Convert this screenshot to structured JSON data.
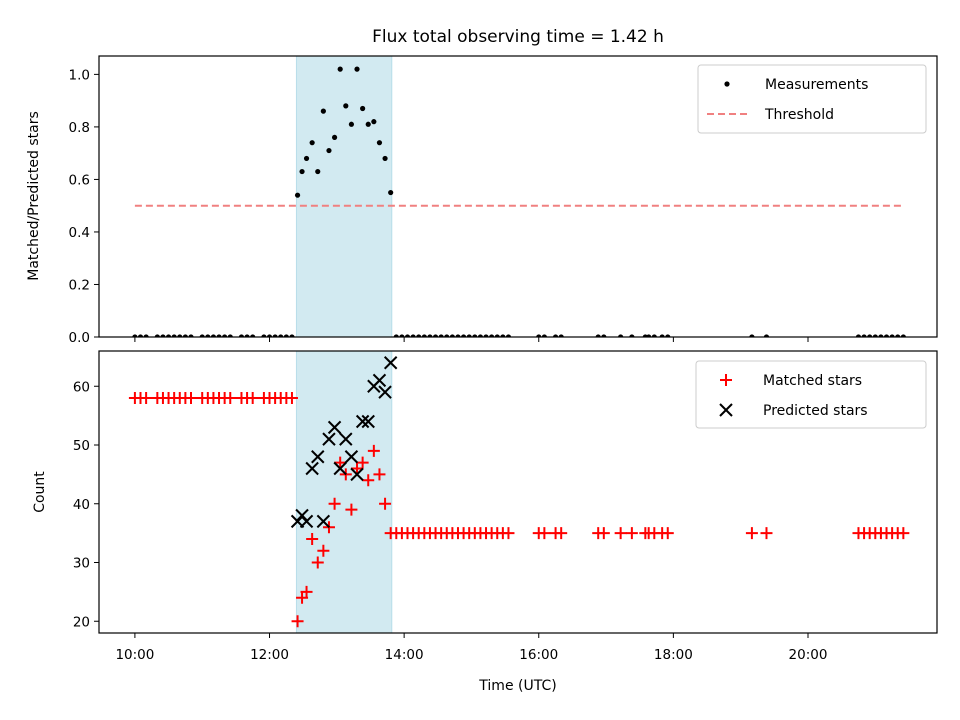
{
  "chart_data": [
    {
      "type": "scatter",
      "title": "Flux total observing time = 1.42 h",
      "xlabel": "",
      "ylabel": "Matched/Predicted stars",
      "ylim": [
        0,
        1.07
      ],
      "yticks": [
        "0.0",
        "0.2",
        "0.4",
        "0.6",
        "0.8",
        "1.0"
      ],
      "xticks": [
        "10:00",
        "12:00",
        "14:00",
        "16:00",
        "18:00",
        "20:00"
      ],
      "xlim": [
        "09:28",
        "21:55"
      ],
      "legend_position": "top-right",
      "shaded_interval": [
        "12:24",
        "13:49"
      ],
      "shade_color": "#add8e6",
      "series": [
        {
          "name": "Measurements",
          "marker": "dot",
          "color": "#000000",
          "points": [
            [
              "10:00",
              0
            ],
            [
              "10:05",
              0
            ],
            [
              "10:10",
              0
            ],
            [
              "10:20",
              0
            ],
            [
              "10:25",
              0
            ],
            [
              "10:30",
              0
            ],
            [
              "10:35",
              0
            ],
            [
              "10:40",
              0
            ],
            [
              "10:45",
              0
            ],
            [
              "10:50",
              0
            ],
            [
              "11:00",
              0
            ],
            [
              "11:05",
              0
            ],
            [
              "11:10",
              0
            ],
            [
              "11:15",
              0
            ],
            [
              "11:20",
              0
            ],
            [
              "11:25",
              0
            ],
            [
              "11:35",
              0
            ],
            [
              "11:40",
              0
            ],
            [
              "11:45",
              0
            ],
            [
              "11:55",
              0
            ],
            [
              "12:00",
              0
            ],
            [
              "12:05",
              0
            ],
            [
              "12:10",
              0
            ],
            [
              "12:15",
              0
            ],
            [
              "12:20",
              0
            ],
            [
              "12:25",
              0.54
            ],
            [
              "12:29",
              0.63
            ],
            [
              "12:33",
              0.68
            ],
            [
              "12:38",
              0.74
            ],
            [
              "12:43",
              0.63
            ],
            [
              "12:48",
              0.86
            ],
            [
              "12:53",
              0.71
            ],
            [
              "12:58",
              0.76
            ],
            [
              "13:03",
              1.02
            ],
            [
              "13:08",
              0.88
            ],
            [
              "13:13",
              0.81
            ],
            [
              "13:18",
              1.02
            ],
            [
              "13:23",
              0.87
            ],
            [
              "13:28",
              0.81
            ],
            [
              "13:33",
              0.82
            ],
            [
              "13:38",
              0.74
            ],
            [
              "13:43",
              0.68
            ],
            [
              "13:48",
              0.55
            ],
            [
              "13:53",
              0
            ],
            [
              "13:58",
              0
            ],
            [
              "14:03",
              0
            ],
            [
              "14:08",
              0
            ],
            [
              "14:13",
              0
            ],
            [
              "14:18",
              0
            ],
            [
              "14:23",
              0
            ],
            [
              "14:28",
              0
            ],
            [
              "14:33",
              0
            ],
            [
              "14:38",
              0
            ],
            [
              "14:43",
              0
            ],
            [
              "14:48",
              0
            ],
            [
              "14:53",
              0
            ],
            [
              "14:58",
              0
            ],
            [
              "15:03",
              0
            ],
            [
              "15:08",
              0
            ],
            [
              "15:13",
              0
            ],
            [
              "15:18",
              0
            ],
            [
              "15:23",
              0
            ],
            [
              "15:28",
              0
            ],
            [
              "15:33",
              0
            ],
            [
              "16:00",
              0
            ],
            [
              "16:05",
              0
            ],
            [
              "16:15",
              0
            ],
            [
              "16:20",
              0
            ],
            [
              "16:53",
              0
            ],
            [
              "16:58",
              0
            ],
            [
              "17:13",
              0
            ],
            [
              "17:23",
              0
            ],
            [
              "17:35",
              0
            ],
            [
              "17:38",
              0
            ],
            [
              "17:43",
              0
            ],
            [
              "17:50",
              0
            ],
            [
              "17:55",
              0
            ],
            [
              "19:10",
              0
            ],
            [
              "19:23",
              0
            ],
            [
              "20:45",
              0
            ],
            [
              "20:50",
              0
            ],
            [
              "20:55",
              0
            ],
            [
              "21:00",
              0
            ],
            [
              "21:05",
              0
            ],
            [
              "21:10",
              0
            ],
            [
              "21:15",
              0
            ],
            [
              "21:20",
              0
            ],
            [
              "21:25",
              0
            ]
          ]
        },
        {
          "name": "Threshold",
          "marker": "dashed-line",
          "color": "#f08080",
          "points": [
            [
              "10:00",
              0.5
            ],
            [
              "21:25",
              0.5
            ]
          ]
        }
      ]
    },
    {
      "type": "scatter",
      "title": "",
      "xlabel": "Time (UTC)",
      "ylabel": "Count",
      "ylim": [
        18,
        66
      ],
      "yticks": [
        "20",
        "30",
        "40",
        "50",
        "60"
      ],
      "xticks": [
        "10:00",
        "12:00",
        "14:00",
        "16:00",
        "18:00",
        "20:00"
      ],
      "xlim": [
        "09:28",
        "21:55"
      ],
      "legend_position": "top-right",
      "shaded_interval": [
        "12:24",
        "13:49"
      ],
      "shade_color": "#add8e6",
      "series": [
        {
          "name": "Matched stars",
          "marker": "plus",
          "color": "#ff0000",
          "points": [
            [
              "10:00",
              58
            ],
            [
              "10:05",
              58
            ],
            [
              "10:10",
              58
            ],
            [
              "10:20",
              58
            ],
            [
              "10:25",
              58
            ],
            [
              "10:30",
              58
            ],
            [
              "10:35",
              58
            ],
            [
              "10:40",
              58
            ],
            [
              "10:45",
              58
            ],
            [
              "10:50",
              58
            ],
            [
              "11:00",
              58
            ],
            [
              "11:05",
              58
            ],
            [
              "11:10",
              58
            ],
            [
              "11:15",
              58
            ],
            [
              "11:20",
              58
            ],
            [
              "11:25",
              58
            ],
            [
              "11:35",
              58
            ],
            [
              "11:40",
              58
            ],
            [
              "11:45",
              58
            ],
            [
              "11:55",
              58
            ],
            [
              "12:00",
              58
            ],
            [
              "12:05",
              58
            ],
            [
              "12:10",
              58
            ],
            [
              "12:15",
              58
            ],
            [
              "12:20",
              58
            ],
            [
              "12:25",
              20
            ],
            [
              "12:29",
              24
            ],
            [
              "12:33",
              25
            ],
            [
              "12:38",
              34
            ],
            [
              "12:43",
              30
            ],
            [
              "12:48",
              32
            ],
            [
              "12:53",
              36
            ],
            [
              "12:58",
              40
            ],
            [
              "13:03",
              47
            ],
            [
              "13:08",
              45
            ],
            [
              "13:13",
              39
            ],
            [
              "13:18",
              46
            ],
            [
              "13:23",
              47
            ],
            [
              "13:28",
              44
            ],
            [
              "13:33",
              49
            ],
            [
              "13:38",
              45
            ],
            [
              "13:43",
              40
            ],
            [
              "13:48",
              35
            ],
            [
              "13:53",
              35
            ],
            [
              "13:58",
              35
            ],
            [
              "14:03",
              35
            ],
            [
              "14:08",
              35
            ],
            [
              "14:13",
              35
            ],
            [
              "14:18",
              35
            ],
            [
              "14:23",
              35
            ],
            [
              "14:28",
              35
            ],
            [
              "14:33",
              35
            ],
            [
              "14:38",
              35
            ],
            [
              "14:43",
              35
            ],
            [
              "14:48",
              35
            ],
            [
              "14:53",
              35
            ],
            [
              "14:58",
              35
            ],
            [
              "15:03",
              35
            ],
            [
              "15:08",
              35
            ],
            [
              "15:13",
              35
            ],
            [
              "15:18",
              35
            ],
            [
              "15:23",
              35
            ],
            [
              "15:28",
              35
            ],
            [
              "15:33",
              35
            ],
            [
              "16:00",
              35
            ],
            [
              "16:05",
              35
            ],
            [
              "16:15",
              35
            ],
            [
              "16:20",
              35
            ],
            [
              "16:53",
              35
            ],
            [
              "16:58",
              35
            ],
            [
              "17:13",
              35
            ],
            [
              "17:23",
              35
            ],
            [
              "17:35",
              35
            ],
            [
              "17:38",
              35
            ],
            [
              "17:43",
              35
            ],
            [
              "17:50",
              35
            ],
            [
              "17:55",
              35
            ],
            [
              "19:10",
              35
            ],
            [
              "19:23",
              35
            ],
            [
              "20:45",
              35
            ],
            [
              "20:50",
              35
            ],
            [
              "20:55",
              35
            ],
            [
              "21:00",
              35
            ],
            [
              "21:05",
              35
            ],
            [
              "21:10",
              35
            ],
            [
              "21:15",
              35
            ],
            [
              "21:20",
              35
            ],
            [
              "21:25",
              35
            ]
          ]
        },
        {
          "name": "Predicted stars",
          "marker": "x",
          "color": "#000000",
          "points": [
            [
              "12:25",
              37
            ],
            [
              "12:29",
              38
            ],
            [
              "12:33",
              37
            ],
            [
              "12:38",
              46
            ],
            [
              "12:43",
              48
            ],
            [
              "12:48",
              37
            ],
            [
              "12:53",
              51
            ],
            [
              "12:58",
              53
            ],
            [
              "13:03",
              46
            ],
            [
              "13:08",
              51
            ],
            [
              "13:13",
              48
            ],
            [
              "13:18",
              45
            ],
            [
              "13:23",
              54
            ],
            [
              "13:28",
              54
            ],
            [
              "13:33",
              60
            ],
            [
              "13:38",
              61
            ],
            [
              "13:43",
              59
            ],
            [
              "13:48",
              64
            ]
          ]
        }
      ]
    }
  ]
}
